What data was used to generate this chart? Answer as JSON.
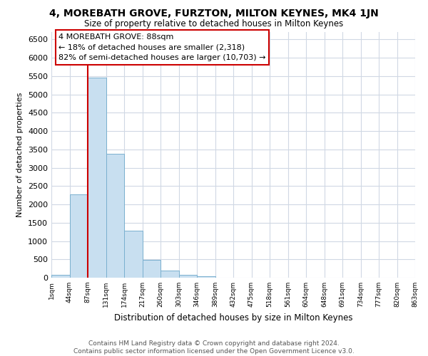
{
  "title": "4, MOREBATH GROVE, FURZTON, MILTON KEYNES, MK4 1JN",
  "subtitle": "Size of property relative to detached houses in Milton Keynes",
  "xlabel": "Distribution of detached houses by size in Milton Keynes",
  "ylabel": "Number of detached properties",
  "bar_values": [
    70,
    2280,
    5450,
    3380,
    1290,
    480,
    185,
    75,
    40,
    0,
    0,
    0,
    0,
    0,
    0,
    0,
    0,
    0,
    0,
    0
  ],
  "bar_labels": [
    "1sqm",
    "44sqm",
    "87sqm",
    "131sqm",
    "174sqm",
    "217sqm",
    "260sqm",
    "303sqm",
    "346sqm",
    "389sqm",
    "432sqm",
    "475sqm",
    "518sqm",
    "561sqm",
    "604sqm",
    "648sqm",
    "691sqm",
    "734sqm",
    "777sqm",
    "820sqm",
    "863sqm"
  ],
  "bar_color": "#c8dff0",
  "bar_edge_color": "#7ab0cf",
  "marker_label": "4 MOREBATH GROVE: 88sqm",
  "annotation_line1": "← 18% of detached houses are smaller (2,318)",
  "annotation_line2": "82% of semi-detached houses are larger (10,703) →",
  "vline_color": "#cc0000",
  "annotation_box_edge_color": "#cc0000",
  "ylim": [
    0,
    6700
  ],
  "ytick_interval": 500,
  "footer_line1": "Contains HM Land Registry data © Crown copyright and database right 2024.",
  "footer_line2": "Contains public sector information licensed under the Open Government Licence v3.0.",
  "background_color": "#ffffff",
  "grid_color": "#d0d8e4"
}
